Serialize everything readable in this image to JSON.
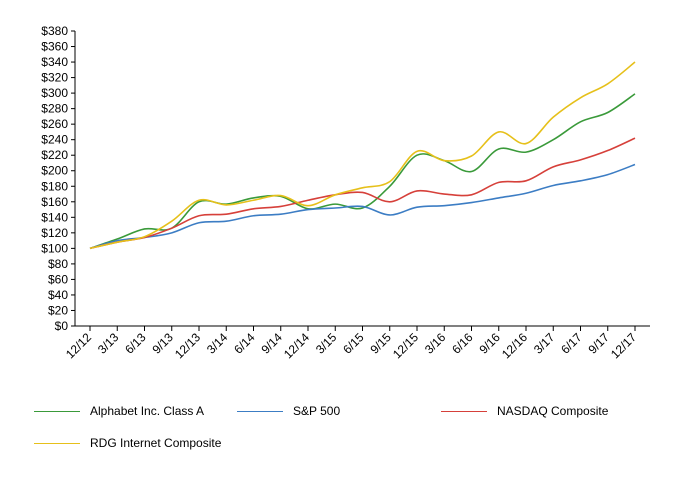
{
  "chart_data": {
    "type": "line",
    "title": "",
    "xlabel": "",
    "ylabel": "",
    "ylim": [
      0,
      380
    ],
    "ytick_step": 20,
    "ytick_labels": [
      "$0",
      "$20",
      "$40",
      "$60",
      "$80",
      "$100",
      "$120",
      "$140",
      "$160",
      "$180",
      "$200",
      "$220",
      "$240",
      "$260",
      "$280",
      "$300",
      "$320",
      "$340",
      "$360",
      "$380"
    ],
    "categories": [
      "12/12",
      "3/13",
      "6/13",
      "9/13",
      "12/13",
      "3/14",
      "6/14",
      "9/14",
      "12/14",
      "3/15",
      "6/15",
      "9/15",
      "12/15",
      "3/16",
      "6/16",
      "9/16",
      "12/16",
      "3/17",
      "6/17",
      "9/17",
      "12/17"
    ],
    "series": [
      {
        "name": "Alphabet Inc. Class A",
        "color": "#3a9a3a",
        "values": [
          100,
          112,
          125,
          126,
          160,
          157,
          165,
          167,
          151,
          157,
          152,
          180,
          220,
          213,
          199,
          228,
          224,
          240,
          263,
          275,
          299
        ]
      },
      {
        "name": "S&P 500",
        "color": "#3c7dc4",
        "values": [
          100,
          110,
          114,
          120,
          133,
          135,
          142,
          144,
          150,
          152,
          154,
          143,
          153,
          155,
          159,
          165,
          171,
          181,
          187,
          195,
          208
        ]
      },
      {
        "name": "NASDAQ Composite",
        "color": "#d6403a",
        "values": [
          100,
          108,
          114,
          126,
          142,
          144,
          151,
          154,
          162,
          169,
          172,
          160,
          174,
          170,
          169,
          185,
          187,
          205,
          214,
          226,
          242
        ]
      },
      {
        "name": "RDG Internet Composite",
        "color": "#e6c01a",
        "values": [
          100,
          108,
          115,
          135,
          162,
          156,
          162,
          168,
          155,
          169,
          178,
          186,
          225,
          213,
          219,
          250,
          235,
          269,
          294,
          312,
          340
        ]
      }
    ],
    "legend": "bottom"
  }
}
